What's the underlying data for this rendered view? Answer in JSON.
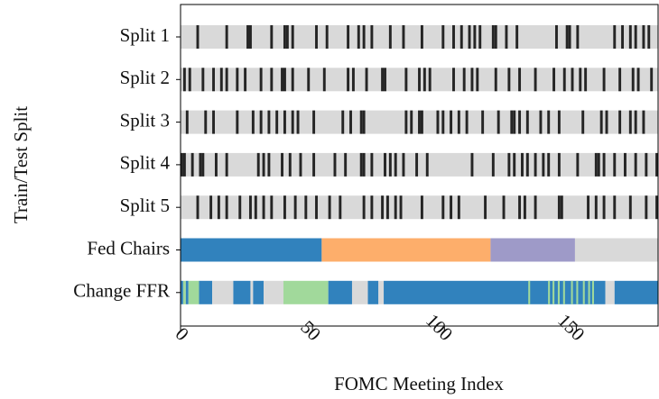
{
  "chart_data": {
    "type": "cv-splits",
    "ylabel": "Train/Test Split",
    "xlabel": "FOMC Meeting Index",
    "categories": [
      "Split 1",
      "Split 2",
      "Split 3",
      "Split 4",
      "Split 5",
      "Fed Chairs",
      "Change FFR"
    ],
    "xlim": [
      0,
      181
    ],
    "xticks": [
      0,
      50,
      100,
      150
    ],
    "train_color": "#d9d9d9",
    "test_color": "#252525",
    "split_test_indices": [
      [
        6,
        17,
        25,
        26,
        34,
        39,
        40,
        42,
        51,
        55,
        63,
        67,
        69,
        72,
        79,
        84,
        91,
        99,
        103,
        106,
        109,
        111,
        113,
        118,
        119,
        123,
        127,
        142,
        146,
        147,
        150,
        164,
        167,
        170,
        172,
        175,
        177
      ],
      [
        1,
        3,
        8,
        12,
        15,
        17,
        21,
        24,
        30,
        34,
        38,
        39,
        42,
        48,
        54,
        63,
        65,
        70,
        76,
        77,
        85,
        90,
        92,
        94,
        103,
        107,
        110,
        112,
        119,
        124,
        128,
        134,
        141,
        145,
        148,
        151,
        153,
        160,
        166,
        171,
        173,
        178
      ],
      [
        2,
        9,
        12,
        21,
        27,
        30,
        33,
        36,
        39,
        42,
        44,
        50,
        61,
        64,
        68,
        69,
        85,
        87,
        90,
        91,
        97,
        99,
        102,
        105,
        108,
        114,
        120,
        125,
        126,
        128,
        131,
        136,
        139,
        143,
        152,
        159,
        161,
        166,
        170,
        172,
        175
      ],
      [
        0,
        1,
        4,
        7,
        8,
        13,
        17,
        29,
        31,
        33,
        38,
        41,
        45,
        50,
        58,
        62,
        68,
        69,
        72,
        77,
        79,
        81,
        84,
        89,
        93,
        110,
        118,
        124,
        126,
        129,
        131,
        134,
        137,
        139,
        143,
        150,
        157,
        158,
        160,
        164,
        168,
        172,
        176,
        180
      ],
      [
        6,
        11,
        14,
        17,
        22,
        26,
        28,
        31,
        34,
        39,
        43,
        47,
        51,
        56,
        60,
        69,
        72,
        76,
        78,
        81,
        83,
        91,
        99,
        102,
        105,
        115,
        122,
        128,
        130,
        134,
        143,
        144,
        154,
        157,
        160,
        164,
        170,
        176,
        180
      ]
    ],
    "fed_chair_segments": [
      {
        "start": 0,
        "end": 53.5,
        "color": "#3182bd"
      },
      {
        "start": 53.5,
        "end": 117.5,
        "color": "#fdae6b"
      },
      {
        "start": 117.5,
        "end": 149.5,
        "color": "#9e9ac8"
      },
      {
        "start": 149.5,
        "end": 181,
        "color": "#d9d9d9"
      }
    ],
    "ffr_segments": [
      {
        "start": 0,
        "end": 1,
        "color": "#3182bd"
      },
      {
        "start": 1,
        "end": 2,
        "color": "#a1d99b"
      },
      {
        "start": 2,
        "end": 3,
        "color": "#3182bd"
      },
      {
        "start": 3,
        "end": 7,
        "color": "#a1d99b"
      },
      {
        "start": 7,
        "end": 12,
        "color": "#3182bd"
      },
      {
        "start": 12,
        "end": 20,
        "color": "#d9d9d9"
      },
      {
        "start": 20,
        "end": 26.5,
        "color": "#3182bd"
      },
      {
        "start": 26.5,
        "end": 27.5,
        "color": "#d9d9d9"
      },
      {
        "start": 27.5,
        "end": 31.5,
        "color": "#3182bd"
      },
      {
        "start": 31.5,
        "end": 39,
        "color": "#d9d9d9"
      },
      {
        "start": 39,
        "end": 56,
        "color": "#a1d99b"
      },
      {
        "start": 56,
        "end": 65,
        "color": "#3182bd"
      },
      {
        "start": 65,
        "end": 71,
        "color": "#d9d9d9"
      },
      {
        "start": 71,
        "end": 75,
        "color": "#3182bd"
      },
      {
        "start": 75,
        "end": 77,
        "color": "#d9d9d9"
      },
      {
        "start": 77,
        "end": 161,
        "color": "#3182bd"
      },
      {
        "start": 131.8,
        "end": 132.5,
        "color": "#a1d99b"
      },
      {
        "start": 139.3,
        "end": 140,
        "color": "#a1d99b"
      },
      {
        "start": 141,
        "end": 141.7,
        "color": "#a1d99b"
      },
      {
        "start": 143,
        "end": 143.7,
        "color": "#a1d99b"
      },
      {
        "start": 145,
        "end": 145.7,
        "color": "#a1d99b"
      },
      {
        "start": 148,
        "end": 148.7,
        "color": "#a1d99b"
      },
      {
        "start": 150,
        "end": 150.7,
        "color": "#a1d99b"
      },
      {
        "start": 152.5,
        "end": 153.2,
        "color": "#a1d99b"
      },
      {
        "start": 154.5,
        "end": 155.2,
        "color": "#a1d99b"
      },
      {
        "start": 156,
        "end": 156.7,
        "color": "#a1d99b"
      },
      {
        "start": 161,
        "end": 164.5,
        "color": "#d9d9d9"
      },
      {
        "start": 164.5,
        "end": 181,
        "color": "#3182bd"
      }
    ]
  }
}
